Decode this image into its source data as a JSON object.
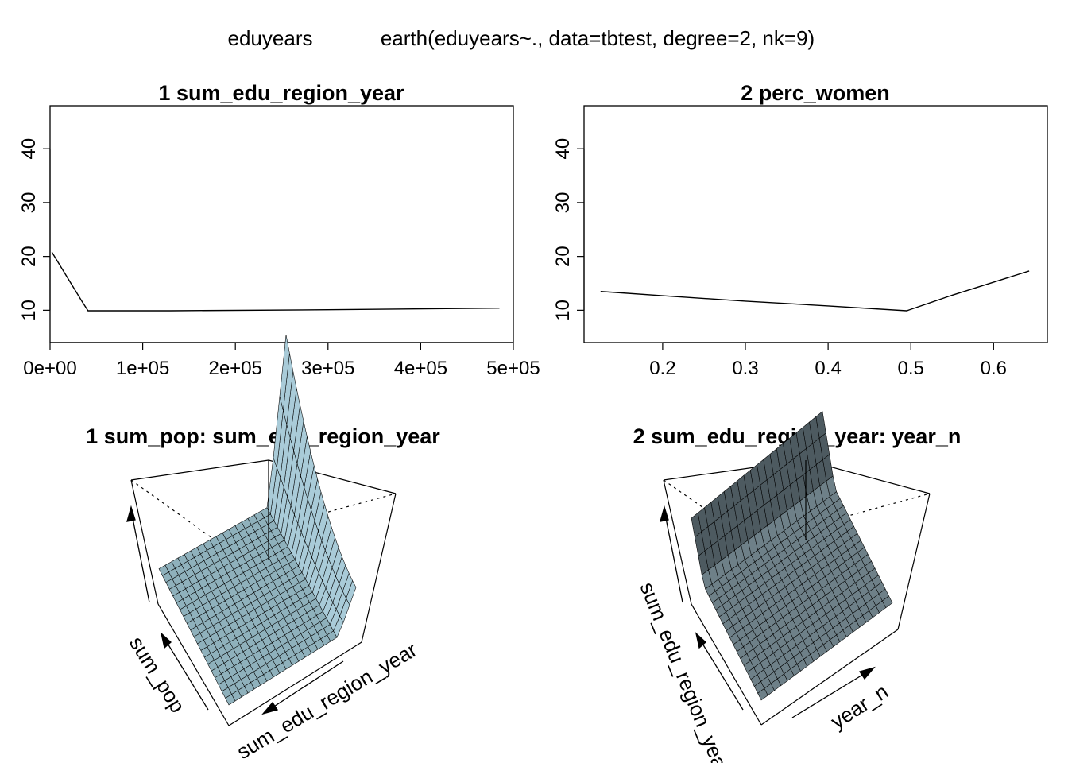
{
  "figure": {
    "response_name": "eduyears",
    "model_call": "earth(eduyears~., data=tbtest, degree=2, nk=9)"
  },
  "chart_data": [
    {
      "type": "line",
      "title": "1  sum_edu_region_year",
      "xlim": [
        0,
        500000
      ],
      "ylim": [
        4,
        48
      ],
      "x_ticks": [
        0,
        100000,
        200000,
        300000,
        400000,
        500000
      ],
      "x_tick_labels": [
        "0e+00",
        "1e+05",
        "2e+05",
        "3e+05",
        "4e+05",
        "5e+05"
      ],
      "y_ticks": [
        10,
        20,
        30,
        40
      ],
      "y_tick_labels": [
        "10",
        "20",
        "30",
        "40"
      ],
      "x": [
        2000,
        35000,
        41000,
        130000,
        300000,
        485000
      ],
      "y": [
        20.8,
        11.5,
        9.9,
        9.9,
        10.1,
        10.4
      ],
      "color": "#000000"
    },
    {
      "type": "line",
      "title": "2  perc_women",
      "xlim": [
        0.105,
        0.665
      ],
      "ylim": [
        4,
        48
      ],
      "x_ticks": [
        0.2,
        0.3,
        0.4,
        0.5,
        0.6
      ],
      "x_tick_labels": [
        "0.2",
        "0.3",
        "0.4",
        "0.5",
        "0.6"
      ],
      "y_ticks": [
        10,
        20,
        30,
        40
      ],
      "y_tick_labels": [
        "10",
        "20",
        "30",
        "40"
      ],
      "x": [
        0.125,
        0.2,
        0.3,
        0.4,
        0.495,
        0.55,
        0.643
      ],
      "y": [
        13.5,
        12.7,
        11.7,
        10.8,
        9.9,
        12.8,
        17.3
      ],
      "color": "#000000"
    },
    {
      "type": "surface",
      "title": "1 sum_pop: sum_edu_region_year",
      "axis_labels": [
        "sum_pop",
        "sum_edu_region_year"
      ],
      "fill": "#8fb1bc",
      "fill_ridge": "#a9cbd8",
      "grid": 20
    },
    {
      "type": "surface",
      "title": "2 sum_edu_region_year: year_n",
      "axis_labels": [
        "sum_edu_region_year",
        "year_n"
      ],
      "fill": "#6e8088",
      "fill_wall": "#4d5a60",
      "grid": 20
    }
  ]
}
